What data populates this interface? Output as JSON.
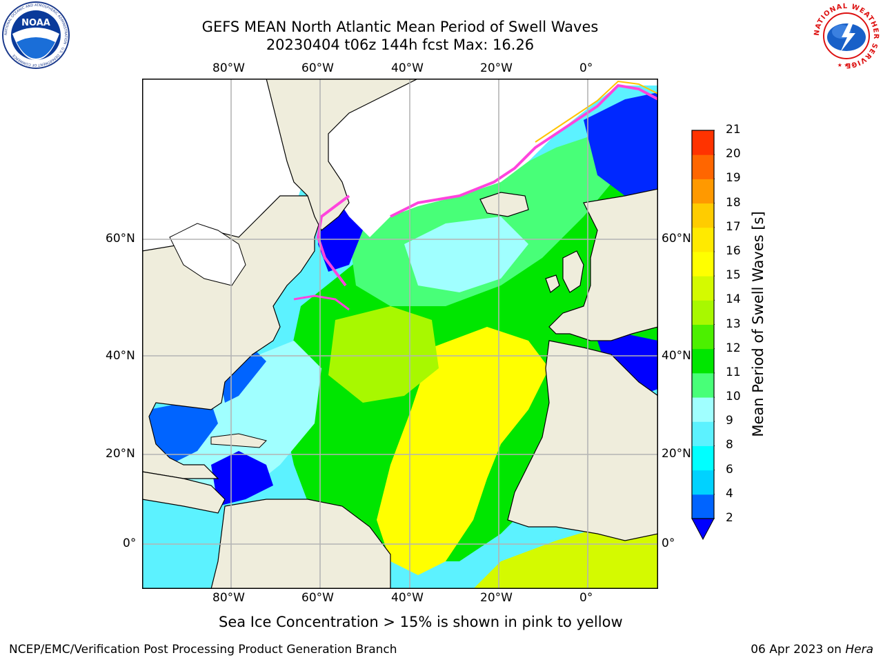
{
  "header": {
    "title_line1": "GEFS MEAN North Atlantic Mean Period of Swell Waves",
    "title_line2": "20230404 t06z 144h fcst   Max: 16.26"
  },
  "logos": {
    "left": {
      "name": "NOAA",
      "ring_text": "NATIONAL OCEANIC AND ATMOSPHERIC ADMINISTRATION · U.S. DEPARTMENT OF COMMERCE"
    },
    "right": {
      "name": "National Weather Service",
      "ring_text": "NATIONAL WEATHER SERVICE"
    }
  },
  "map": {
    "lon_labels": [
      "80°W",
      "60°W",
      "40°W",
      "20°W",
      "0°"
    ],
    "lat_labels": [
      "60°N",
      "40°N",
      "20°N",
      "0°"
    ],
    "colors": {
      "land": "#efeddc",
      "ice_free_white": "#ffffff",
      "coast": "#000000",
      "grid": "#b4b4b4"
    }
  },
  "colorbar": {
    "label": "Mean Period of Swell Waves [s]",
    "ticks": [
      "2",
      "4",
      "6",
      "8",
      "9",
      "10",
      "11",
      "12",
      "13",
      "14",
      "15",
      "16",
      "17",
      "18",
      "19",
      "20",
      "21"
    ],
    "colors": [
      "#0064ff",
      "#00d2ff",
      "#00ffff",
      "#5cf2ff",
      "#a0ffff",
      "#48ff78",
      "#00e600",
      "#4cf000",
      "#a8f800",
      "#d4fa00",
      "#ffff00",
      "#ffea00",
      "#ffcc00",
      "#ff9900",
      "#ff6600",
      "#ff3300"
    ],
    "extend_color": "#0000ff"
  },
  "caption": "Sea Ice Concentration > 15% is shown in pink to yellow",
  "footer": {
    "left": "NCEP/EMC/Verification Post Processing Product Generation Branch",
    "date": "06 Apr 2023 on ",
    "machine": "Hera"
  }
}
